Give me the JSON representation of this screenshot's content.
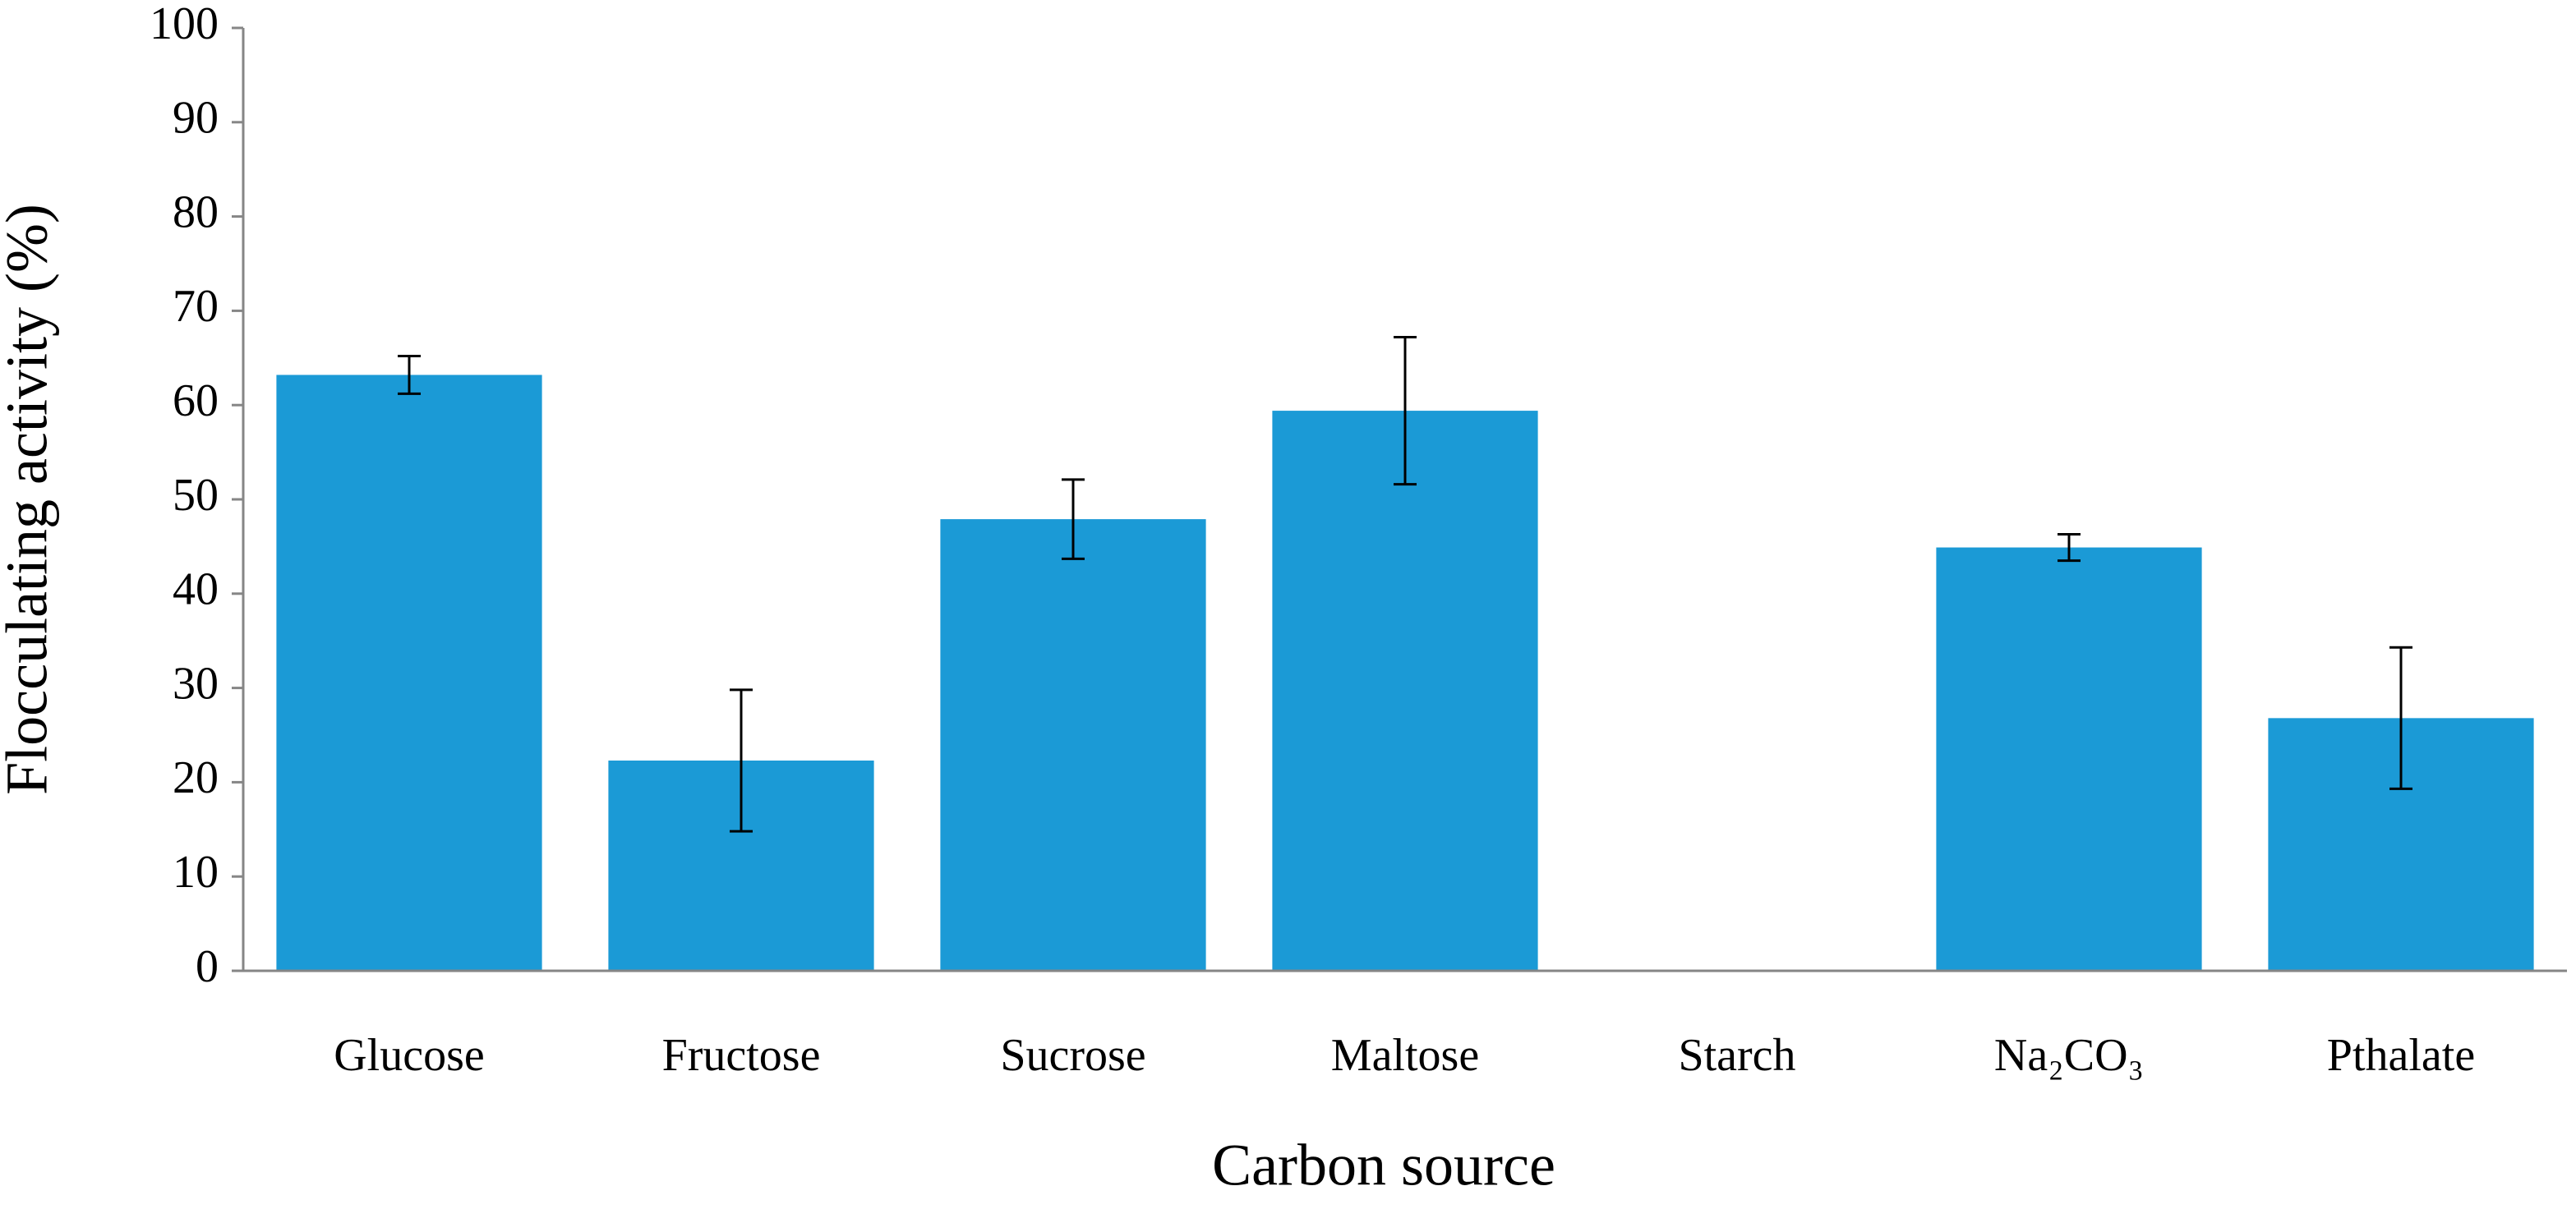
{
  "chart_data": {
    "type": "bar",
    "x_label": "Carbon source",
    "y_label": "Flocculating activity (%)",
    "categories": [
      "Glucose",
      "Fructose",
      "Sucrose",
      "Maltose",
      "Starch",
      "Na₂CO₃",
      "Pthalate"
    ],
    "series": [
      {
        "color": "#1b9ad6",
        "values": [
          63.2,
          22.3,
          47.9,
          59.4,
          0,
          44.9,
          26.8
        ],
        "errors": [
          2.0,
          7.5,
          4.2,
          7.8,
          0,
          1.4,
          7.5
        ]
      }
    ],
    "ylim": [
      0,
      100
    ],
    "yticks": [
      0,
      10,
      20,
      30,
      40,
      50,
      60,
      70,
      80,
      90,
      100
    ],
    "grid": false
  }
}
